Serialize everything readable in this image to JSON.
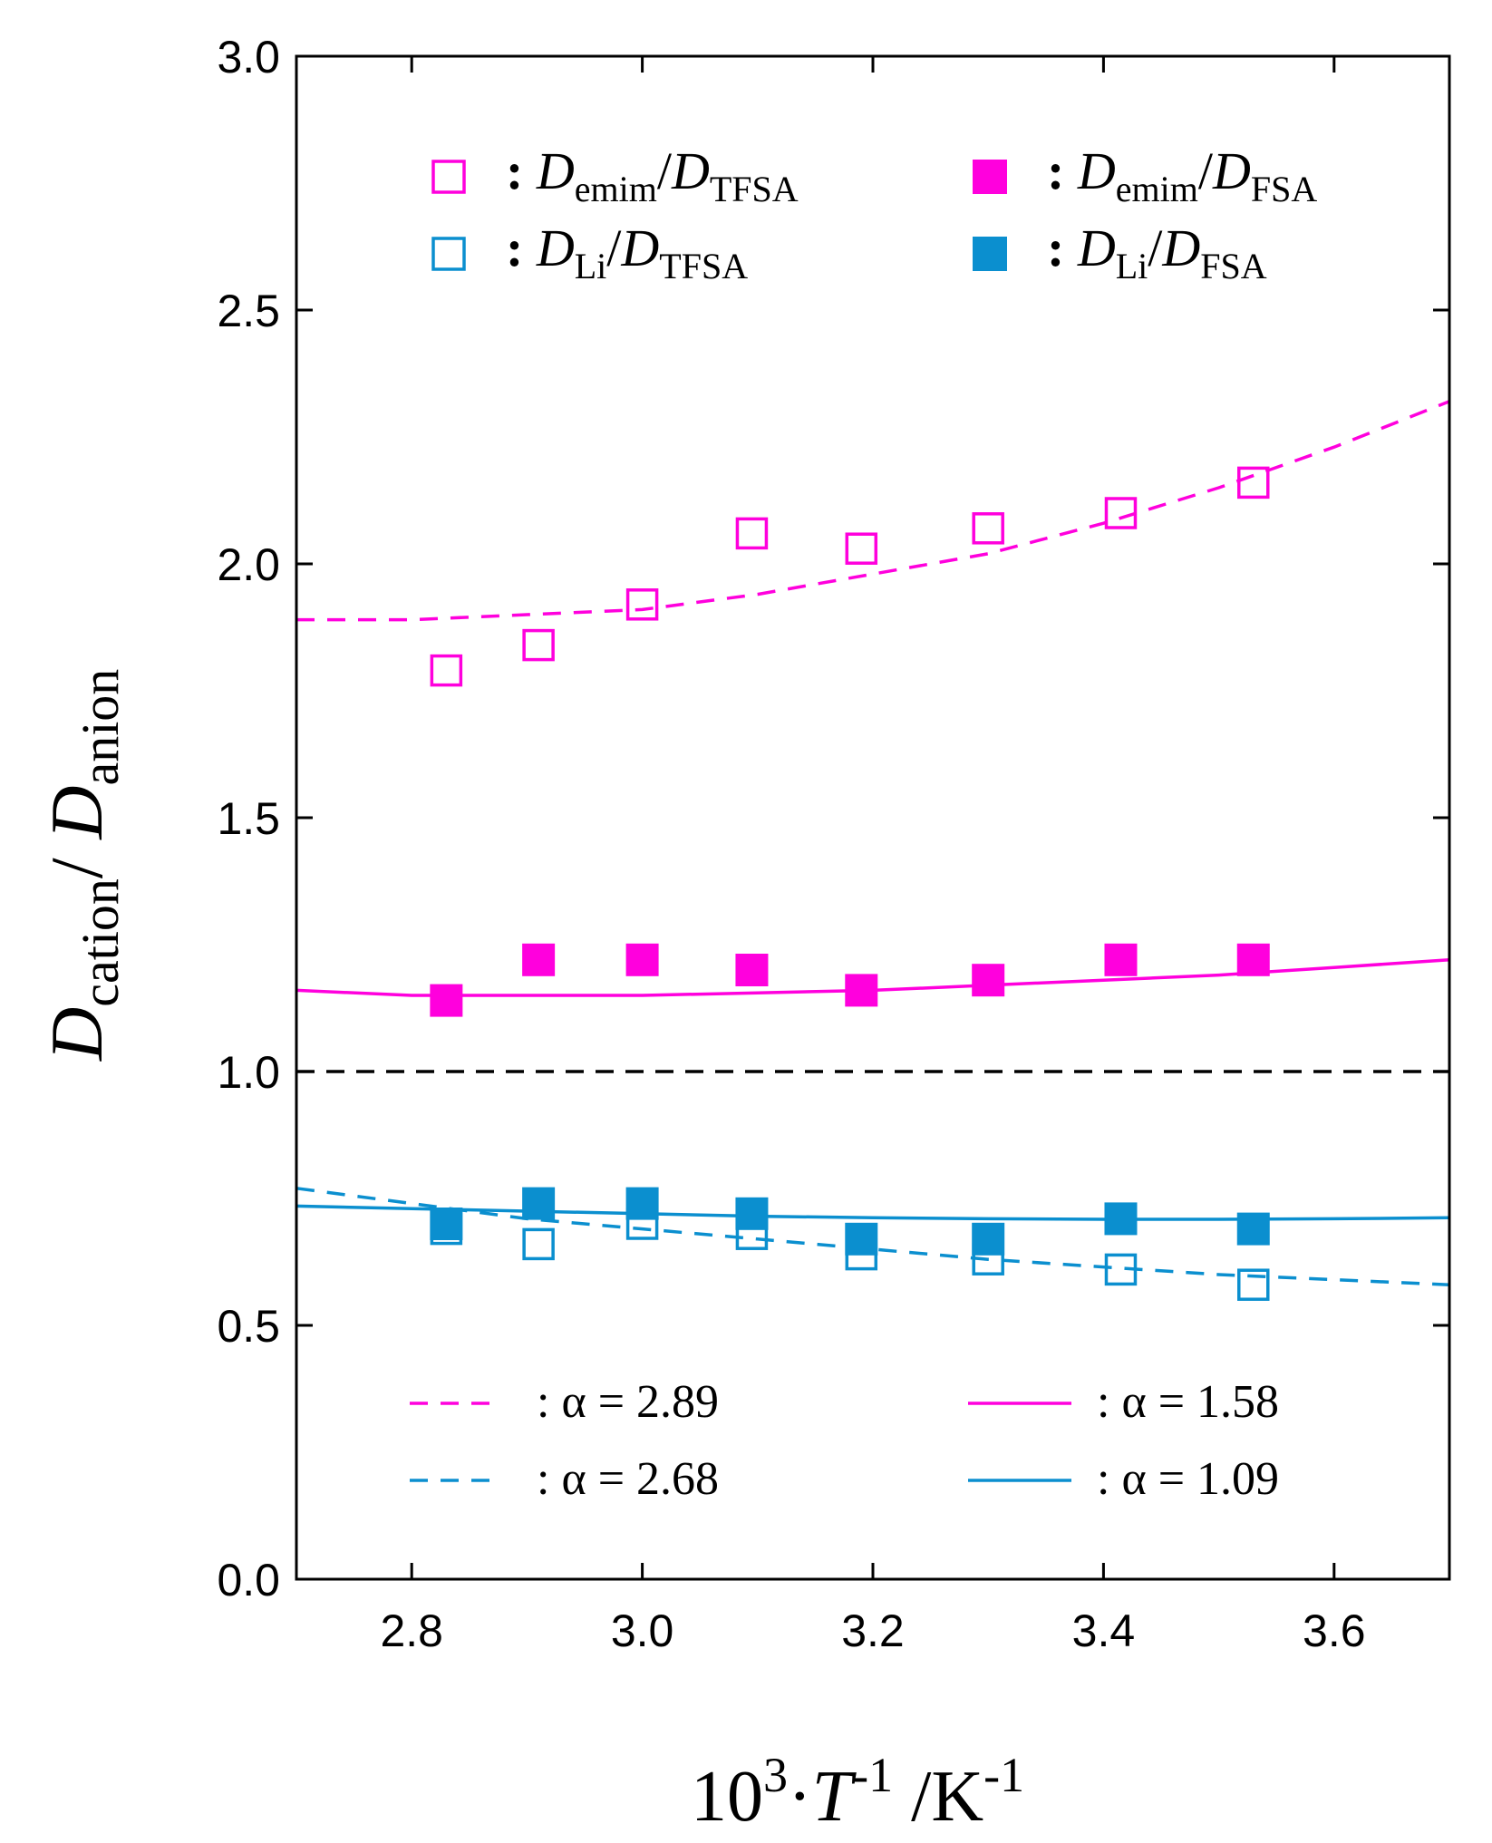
{
  "chart_data": {
    "type": "scatter",
    "title": "",
    "xlabel": {
      "base": "10",
      "sup1": "3",
      "dot": "·",
      "var": "T",
      "sup2": "-1",
      "unit": " /K",
      "sup3": "-1"
    },
    "ylabel": {
      "var1": "D",
      "sub1": "cation",
      "slash": "/ ",
      "var2": "D",
      "sub2": "anion"
    },
    "xlim": [
      2.7,
      3.7
    ],
    "ylim": [
      0.0,
      3.0
    ],
    "xticks": [
      2.8,
      3.0,
      3.2,
      3.4,
      3.6
    ],
    "xtick_labels": [
      "2.8",
      "3.0",
      "3.2",
      "3.4",
      "3.6"
    ],
    "yticks": [
      0.0,
      0.5,
      1.0,
      1.5,
      2.0,
      2.5,
      3.0
    ],
    "ytick_labels": [
      "0.0",
      "0.5",
      "1.0",
      "1.5",
      "2.0",
      "2.5",
      "3.0"
    ],
    "series": [
      {
        "name": "Demim/DTFSA",
        "label": {
          "sep": ": ",
          "d1": "D",
          "s1": "emim",
          "slash": "/",
          "d2": "D",
          "s2": "TFSA"
        },
        "color": "#ff00dd",
        "marker": "square-open",
        "x": [
          2.83,
          2.91,
          3.0,
          3.095,
          3.19,
          3.3,
          3.415,
          3.53
        ],
        "y": [
          1.79,
          1.84,
          1.92,
          2.06,
          2.03,
          2.07,
          2.1,
          2.16
        ]
      },
      {
        "name": "Demim/DFSA",
        "label": {
          "sep": ": ",
          "d1": "D",
          "s1": "emim",
          "slash": "/",
          "d2": "D",
          "s2": "FSA"
        },
        "color": "#ff00dd",
        "marker": "square-filled",
        "x": [
          2.83,
          2.91,
          3.0,
          3.095,
          3.19,
          3.3,
          3.415,
          3.53
        ],
        "y": [
          1.14,
          1.22,
          1.22,
          1.2,
          1.16,
          1.18,
          1.22,
          1.22
        ]
      },
      {
        "name": "DLi/DTFSA",
        "label": {
          "sep": ": ",
          "d1": "D",
          "s1": "Li",
          "slash": "/",
          "d2": "D",
          "s2": "TFSA"
        },
        "color": "#0b8fcf",
        "marker": "square-open",
        "x": [
          2.83,
          2.91,
          3.0,
          3.095,
          3.19,
          3.3,
          3.415,
          3.53
        ],
        "y": [
          0.69,
          0.66,
          0.7,
          0.68,
          0.64,
          0.63,
          0.61,
          0.58
        ]
      },
      {
        "name": "DLi/DFSA",
        "label": {
          "sep": ": ",
          "d1": "D",
          "s1": "Li",
          "slash": "/",
          "d2": "D",
          "s2": "FSA"
        },
        "color": "#0b8fcf",
        "marker": "square-filled",
        "x": [
          2.83,
          2.91,
          3.0,
          3.095,
          3.19,
          3.3,
          3.415,
          3.53
        ],
        "y": [
          0.7,
          0.74,
          0.74,
          0.72,
          0.67,
          0.67,
          0.71,
          0.69
        ]
      }
    ],
    "fits": [
      {
        "label": ": α = 2.89",
        "color": "#ff00dd",
        "dash": "dashed",
        "x": [
          2.7,
          2.8,
          2.9,
          3.0,
          3.1,
          3.2,
          3.3,
          3.4,
          3.5,
          3.6,
          3.7
        ],
        "y": [
          1.89,
          1.89,
          1.9,
          1.91,
          1.94,
          1.98,
          2.02,
          2.08,
          2.15,
          2.23,
          2.32
        ]
      },
      {
        "label": ": α = 1.58",
        "color": "#ff00dd",
        "dash": "solid",
        "x": [
          2.7,
          2.8,
          2.9,
          3.0,
          3.1,
          3.2,
          3.3,
          3.4,
          3.5,
          3.6,
          3.7
        ],
        "y": [
          1.16,
          1.15,
          1.15,
          1.15,
          1.155,
          1.16,
          1.17,
          1.18,
          1.19,
          1.205,
          1.22
        ]
      },
      {
        "label": ": α = 2.68",
        "color": "#0b8fcf",
        "dash": "dashed",
        "x": [
          2.7,
          2.8,
          2.9,
          3.0,
          3.1,
          3.2,
          3.3,
          3.4,
          3.5,
          3.6,
          3.7
        ],
        "y": [
          0.77,
          0.74,
          0.71,
          0.69,
          0.67,
          0.65,
          0.63,
          0.615,
          0.6,
          0.59,
          0.58
        ]
      },
      {
        "label": ": α = 1.09",
        "color": "#0b8fcf",
        "dash": "solid",
        "x": [
          2.7,
          2.8,
          2.9,
          3.0,
          3.1,
          3.2,
          3.3,
          3.4,
          3.5,
          3.6,
          3.7
        ],
        "y": [
          0.735,
          0.73,
          0.725,
          0.72,
          0.715,
          0.712,
          0.71,
          0.709,
          0.709,
          0.71,
          0.712
        ]
      }
    ],
    "reference_line": {
      "y": 1.0,
      "color": "#000000",
      "dash": "dashed"
    }
  }
}
